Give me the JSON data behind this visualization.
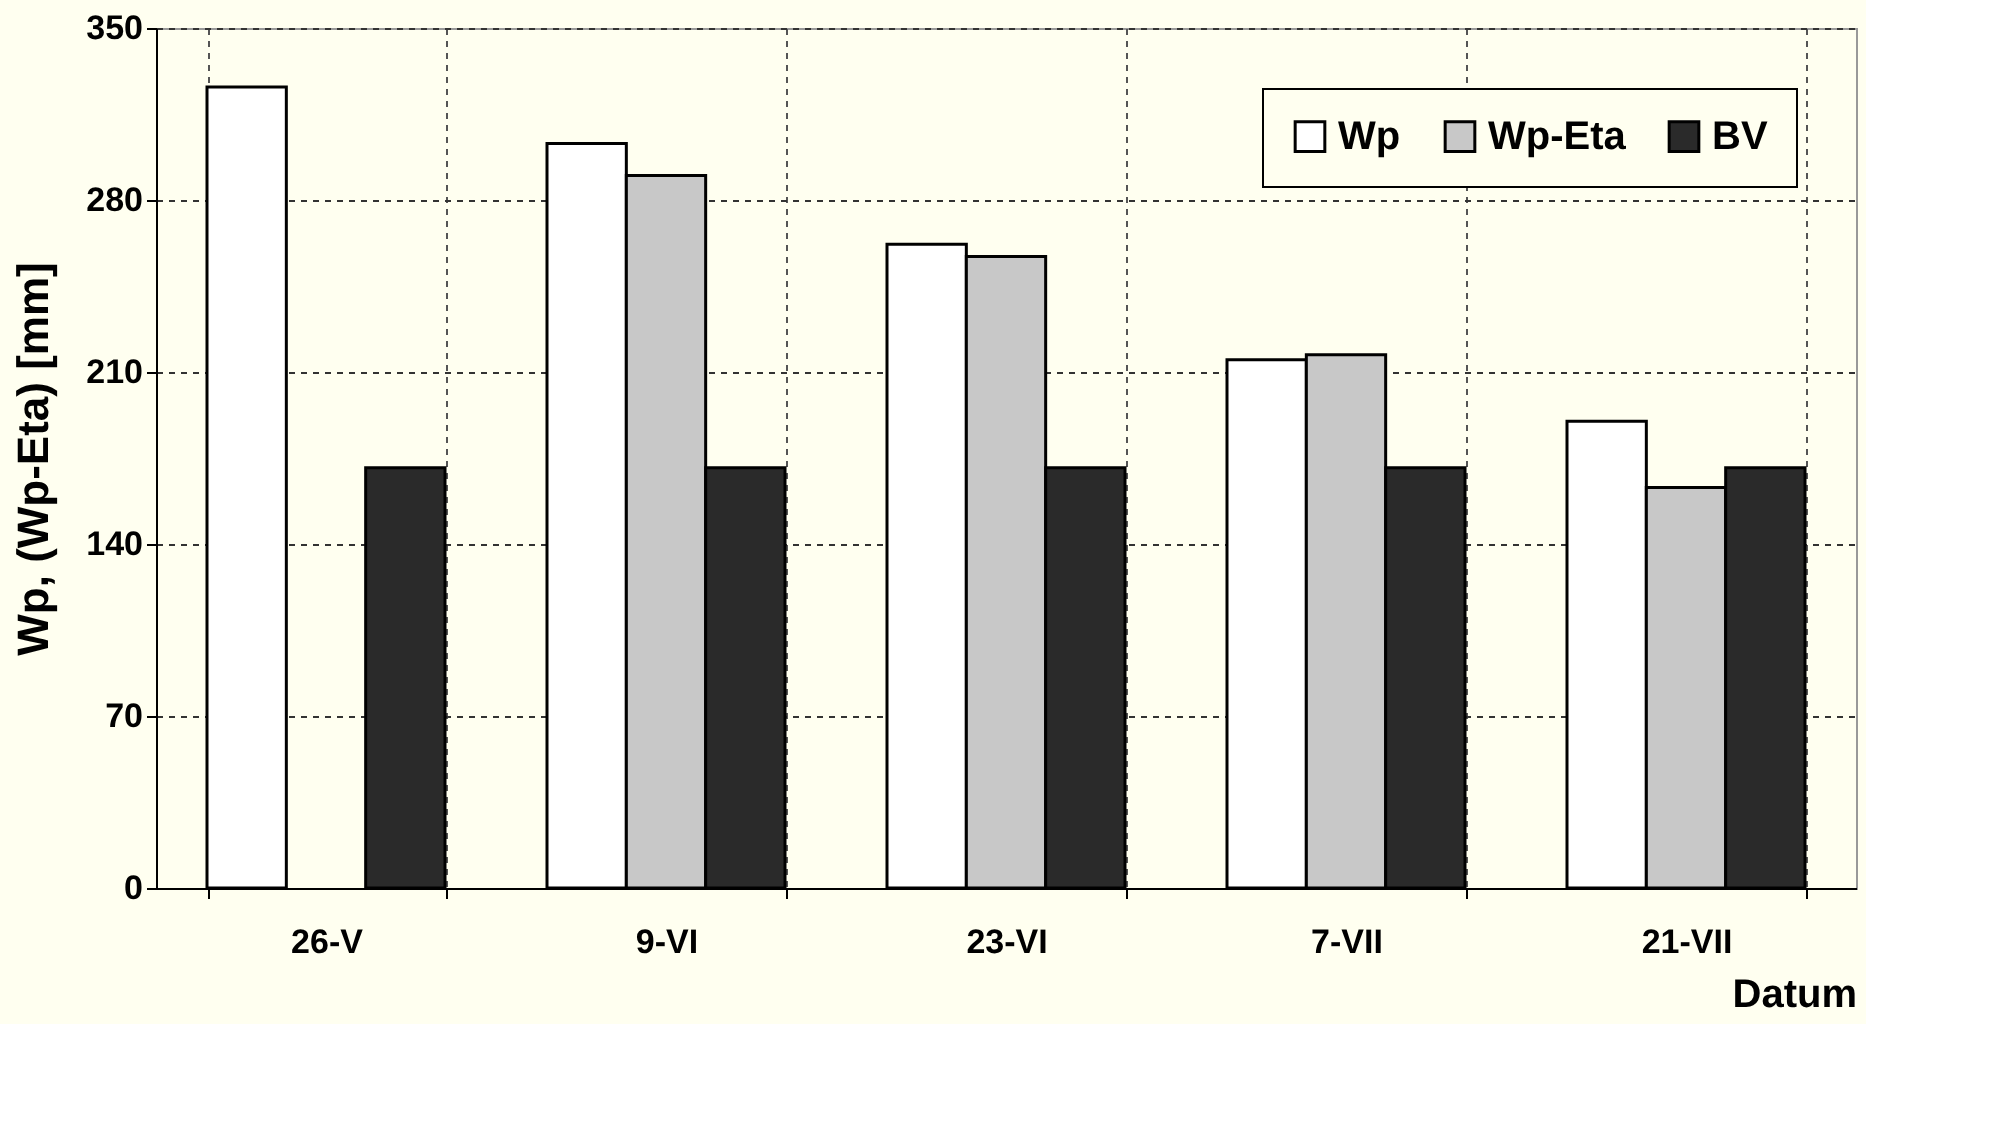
{
  "chart_data": {
    "type": "bar",
    "xlabel": "Datum",
    "ylabel": "Wp, (Wp-Eta)  [mm]",
    "categories": [
      "26-V",
      "9-VI",
      "23-VI",
      "7-VII",
      "21-VII"
    ],
    "series": [
      {
        "name": "Wp",
        "color": "#ffffff",
        "values": [
          326,
          303,
          262,
          215,
          190
        ]
      },
      {
        "name": "Wp-Eta",
        "color": "#c8c8c8",
        "values": [
          null,
          290,
          257,
          217,
          163
        ]
      },
      {
        "name": "BV",
        "color": "#2a2a2a",
        "values": [
          171,
          171,
          171,
          171,
          171
        ]
      }
    ],
    "ylim": [
      0,
      350
    ],
    "yticks": [
      0,
      70,
      140,
      210,
      280,
      350
    ],
    "grid": true,
    "legend": "top right"
  }
}
